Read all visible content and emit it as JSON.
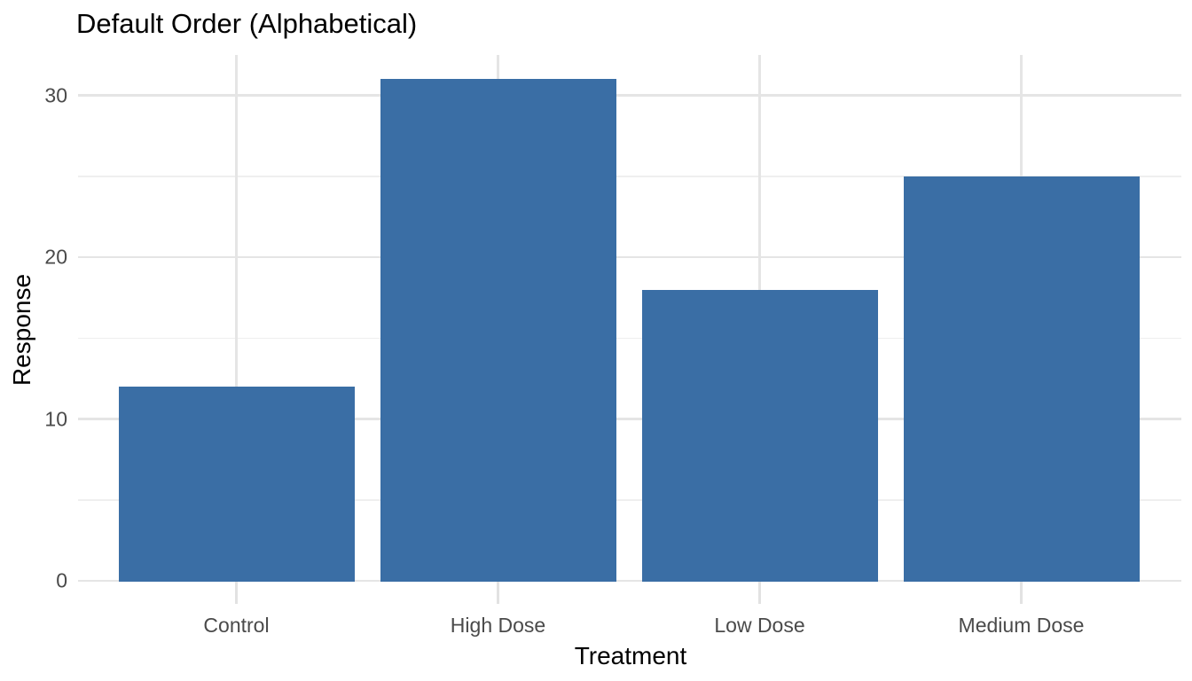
{
  "chart_data": {
    "type": "bar",
    "title": "Default Order (Alphabetical)",
    "xlabel": "Treatment",
    "ylabel": "Response",
    "categories": [
      "Control",
      "High Dose",
      "Low Dose",
      "Medium Dose"
    ],
    "values": [
      12,
      31,
      18,
      25
    ],
    "ylim": [
      0,
      32.5
    ],
    "yticks_major": [
      0,
      10,
      20,
      30
    ],
    "yticks_minor": [
      5,
      15,
      25
    ],
    "bar_width_fraction": 0.9,
    "grid": "on",
    "legend": "none",
    "colors": {
      "bar_fill": "#3A6EA5",
      "background": "#FFFFFF",
      "grid_major": "#E5E5E5",
      "grid_minor": "#EFEFEF",
      "axis_tick": "#E2E2E2",
      "tick_label": "#4A4A4A",
      "title": "#000000",
      "axis_title": "#000000"
    }
  }
}
